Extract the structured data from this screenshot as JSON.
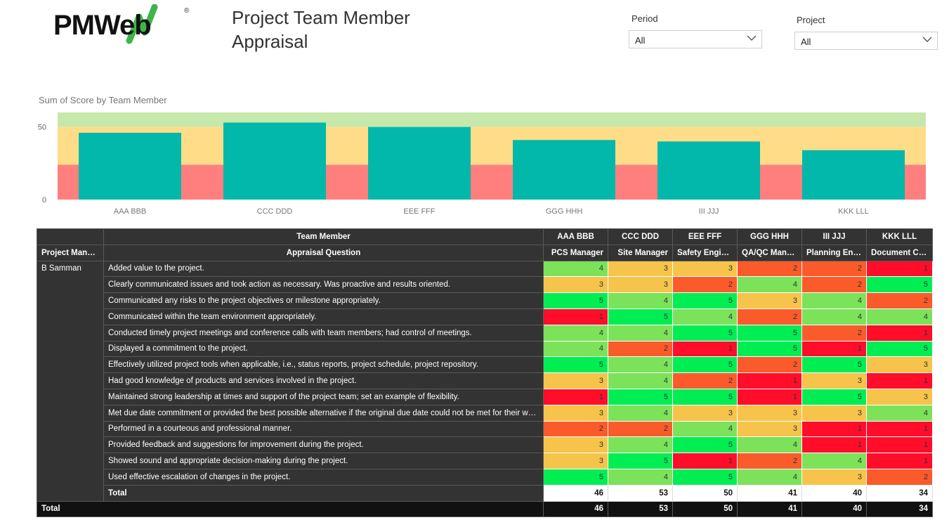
{
  "header": {
    "logo_text": "PMWeb",
    "logo_mark": "®",
    "title_line1": "Project Team Member",
    "title_line2": "Appraisal"
  },
  "filters": {
    "period": {
      "label": "Period",
      "value": "All"
    },
    "project": {
      "label": "Project",
      "value": "All"
    }
  },
  "chart_data": {
    "type": "bar",
    "title": "Sum of Score by Team Member",
    "categories": [
      "AAA BBB",
      "CCC DDD",
      "EEE FFF",
      "GGG HHH",
      "III JJJ",
      "KKK LLL"
    ],
    "values": [
      46,
      53,
      50,
      41,
      40,
      34
    ],
    "ylim": [
      0,
      60
    ],
    "yticks": [
      0,
      50
    ],
    "bands": [
      {
        "from": 0,
        "to": 24,
        "color": "#ff7f7f"
      },
      {
        "from": 24,
        "to": 50,
        "color": "#ffdd88"
      },
      {
        "from": 50,
        "to": 60,
        "color": "#c6e8aa"
      }
    ],
    "bar_color": "#01b8aa"
  },
  "matrix": {
    "corner_top": "",
    "team_member_label": "Team Member",
    "project_manager_label": "Project Manager",
    "appraisal_question_label": "Appraisal Question",
    "members": [
      {
        "name": "AAA BBB",
        "role": "PCS Manager"
      },
      {
        "name": "CCC DDD",
        "role": "Site Manager"
      },
      {
        "name": "EEE FFF",
        "role": "Safety Engineer"
      },
      {
        "name": "GGG HHH",
        "role": "QA/QC Mana..."
      },
      {
        "name": "III JJJ",
        "role": "Planning Engi..."
      },
      {
        "name": "KKK LLL",
        "role": "Document Co..."
      }
    ],
    "manager": "B Samman",
    "rows": [
      {
        "q": "Added value to the project.",
        "s": [
          4,
          3,
          3,
          2,
          2,
          1
        ]
      },
      {
        "q": "Clearly communicated issues and took action as necessary. Was proactive and results oriented.",
        "s": [
          3,
          3,
          2,
          4,
          2,
          5
        ]
      },
      {
        "q": "Communicated any risks to the project objectives or milestone appropriately.",
        "s": [
          5,
          4,
          5,
          3,
          4,
          2
        ]
      },
      {
        "q": "Communicated within the team environment appropriately.",
        "s": [
          1,
          5,
          4,
          2,
          4,
          4
        ]
      },
      {
        "q": "Conducted timely project meetings and conference calls with team members; had control of meetings.",
        "s": [
          4,
          4,
          5,
          5,
          2,
          1
        ]
      },
      {
        "q": "Displayed a commitment to the project.",
        "s": [
          4,
          2,
          1,
          5,
          1,
          5
        ]
      },
      {
        "q": "Effectively utilized project tools when applicable, i.e., status reports, project schedule, project repository.",
        "s": [
          5,
          4,
          5,
          2,
          5,
          3
        ]
      },
      {
        "q": "Had good knowledge of products and services involved in the project.",
        "s": [
          3,
          4,
          2,
          1,
          3,
          1
        ]
      },
      {
        "q": "Maintained strong leadership at times and support of the project team; set an example of flexibility.",
        "s": [
          1,
          5,
          5,
          1,
          5,
          3
        ]
      },
      {
        "q": "Met due date commitment or provided the best possible alternative if the original due date could not be met for their work.",
        "s": [
          3,
          4,
          3,
          3,
          3,
          4
        ]
      },
      {
        "q": "Performed in a courteous and professional manner.",
        "s": [
          2,
          2,
          4,
          3,
          1,
          1
        ]
      },
      {
        "q": "Provided feedback and suggestions for improvement during the project.",
        "s": [
          3,
          4,
          5,
          4,
          1,
          1
        ]
      },
      {
        "q": "Showed sound and appropriate decision-making during the project.",
        "s": [
          3,
          5,
          1,
          2,
          4,
          1
        ]
      },
      {
        "q": "Used effective escalation of changes in the project.",
        "s": [
          5,
          4,
          5,
          4,
          3,
          2
        ]
      }
    ],
    "subtotal_label": "Total",
    "subtotals": [
      46,
      53,
      50,
      41,
      40,
      34
    ],
    "grand_total_label": "Total",
    "totals": [
      46,
      53,
      50,
      41,
      40,
      34
    ],
    "score_colors": {
      "1": "#ff0d2a",
      "2": "#fb5a2a",
      "3": "#f6c44a",
      "4": "#7be25a",
      "5": "#00ee53"
    }
  }
}
